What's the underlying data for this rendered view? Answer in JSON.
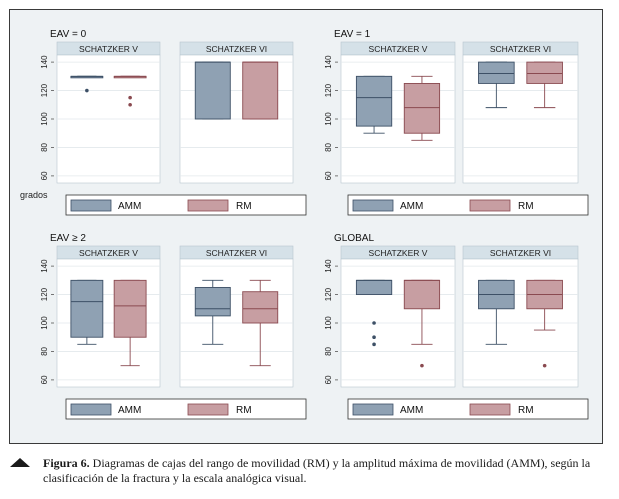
{
  "colors": {
    "amm": "#8fa1b3",
    "amm_stroke": "#3d5066",
    "rm": "#c79ea2",
    "rm_stroke": "#8a4a50",
    "strip": "#d5e1e8",
    "frame_bg": "#eef2f4",
    "plot_bg": "#ffffff"
  },
  "legend": {
    "amm": "AMM",
    "rm": "RM"
  },
  "y_unit_label": "grados",
  "chart_data": [
    {
      "type": "box",
      "title": "EAV = 0",
      "ylim": [
        55,
        145
      ],
      "yticks": [
        "60",
        "80",
        "100",
        "120",
        "140"
      ],
      "panels": [
        {
          "label": "SCHATZKER V",
          "series": [
            {
              "name": "AMM",
              "min": 130,
              "q1": 130,
              "median": 130,
              "q3": 130,
              "max": 130,
              "outliers": [
                120
              ]
            },
            {
              "name": "RM",
              "min": 130,
              "q1": 130,
              "median": 130,
              "q3": 130,
              "max": 130,
              "outliers": [
                115,
                110
              ]
            }
          ]
        },
        {
          "label": "SCHATZKER VI",
          "series": [
            {
              "name": "AMM",
              "min": 100,
              "q1": 100,
              "median": 140,
              "q3": 140,
              "max": 140,
              "outliers": []
            },
            {
              "name": "RM",
              "min": 100,
              "q1": 100,
              "median": 140,
              "q3": 140,
              "max": 140,
              "outliers": []
            }
          ]
        }
      ]
    },
    {
      "type": "box",
      "title": "EAV = 1",
      "ylim": [
        55,
        145
      ],
      "yticks": [
        "60",
        "80",
        "100",
        "120",
        "140"
      ],
      "panels": [
        {
          "label": "SCHATZKER V",
          "series": [
            {
              "name": "AMM",
              "min": 90,
              "q1": 95,
              "median": 115,
              "q3": 130,
              "max": 130,
              "outliers": []
            },
            {
              "name": "RM",
              "min": 85,
              "q1": 90,
              "median": 108,
              "q3": 125,
              "max": 130,
              "outliers": []
            }
          ]
        },
        {
          "label": "SCHATZKER VI",
          "series": [
            {
              "name": "AMM",
              "min": 108,
              "q1": 125,
              "median": 132,
              "q3": 140,
              "max": 140,
              "outliers": []
            },
            {
              "name": "RM",
              "min": 108,
              "q1": 125,
              "median": 132,
              "q3": 140,
              "max": 140,
              "outliers": []
            }
          ]
        }
      ]
    },
    {
      "type": "box",
      "title": "EAV ≥ 2",
      "ylim": [
        55,
        145
      ],
      "yticks": [
        "60",
        "80",
        "100",
        "120",
        "140"
      ],
      "panels": [
        {
          "label": "SCHATZKER V",
          "series": [
            {
              "name": "AMM",
              "min": 85,
              "q1": 90,
              "median": 115,
              "q3": 130,
              "max": 130,
              "outliers": []
            },
            {
              "name": "RM",
              "min": 70,
              "q1": 90,
              "median": 112,
              "q3": 130,
              "max": 130,
              "outliers": []
            }
          ]
        },
        {
          "label": "SCHATZKER VI",
          "series": [
            {
              "name": "AMM",
              "min": 85,
              "q1": 105,
              "median": 110,
              "q3": 125,
              "max": 130,
              "outliers": []
            },
            {
              "name": "RM",
              "min": 70,
              "q1": 100,
              "median": 110,
              "q3": 122,
              "max": 130,
              "outliers": []
            }
          ]
        }
      ]
    },
    {
      "type": "box",
      "title": "GLOBAL",
      "ylim": [
        55,
        145
      ],
      "yticks": [
        "60",
        "80",
        "100",
        "120",
        "140"
      ],
      "panels": [
        {
          "label": "SCHATZKER V",
          "series": [
            {
              "name": "AMM",
              "min": 120,
              "q1": 120,
              "median": 130,
              "q3": 130,
              "max": 130,
              "outliers": [
                100,
                90,
                85
              ]
            },
            {
              "name": "RM",
              "min": 85,
              "q1": 110,
              "median": 130,
              "q3": 130,
              "max": 130,
              "outliers": [
                70
              ]
            }
          ]
        },
        {
          "label": "SCHATZKER VI",
          "series": [
            {
              "name": "AMM",
              "min": 85,
              "q1": 110,
              "median": 120,
              "q3": 130,
              "max": 130,
              "outliers": []
            },
            {
              "name": "RM",
              "min": 95,
              "q1": 110,
              "median": 120,
              "q3": 130,
              "max": 130,
              "outliers": [
                70
              ]
            }
          ]
        }
      ]
    }
  ],
  "caption": {
    "label": "Figura 6.",
    "text": "Diagramas de cajas del rango de movilidad (RM) y la amplitud máxima de movilidad (AMM), según la clasificación de la fractura y la escala analógica visual."
  }
}
